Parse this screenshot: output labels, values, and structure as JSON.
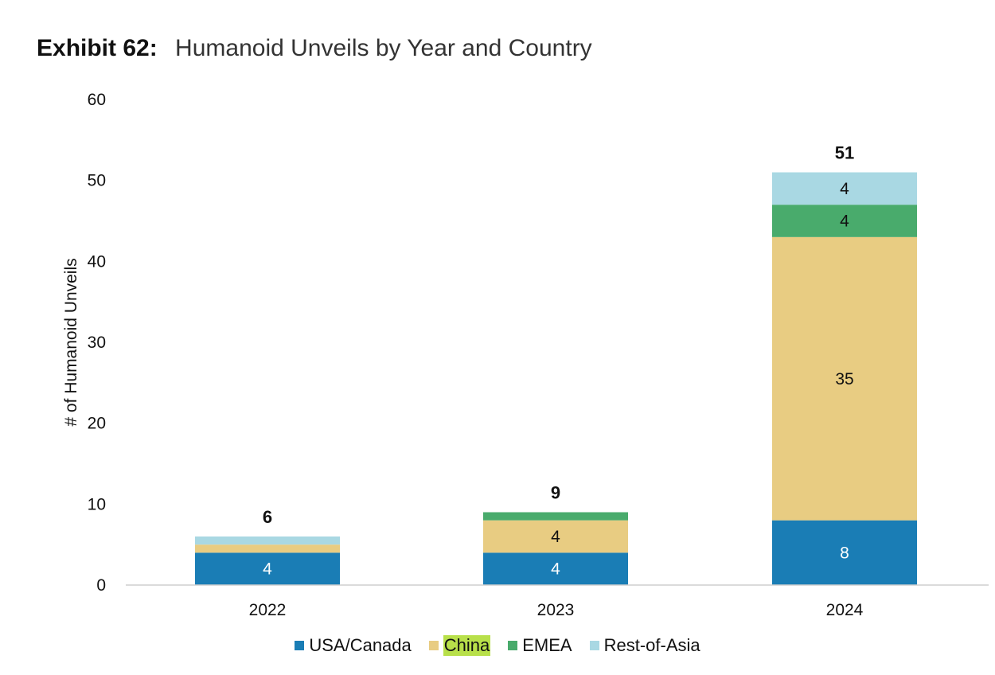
{
  "header": {
    "exhibit_label": "Exhibit 62:",
    "exhibit_title": "Humanoid Unveils by Year and Country"
  },
  "chart_data": {
    "type": "bar",
    "stacked": true,
    "categories": [
      "2022",
      "2023",
      "2024"
    ],
    "series": [
      {
        "name": "USA/Canada",
        "color": "#1a7db5",
        "values": [
          4,
          4,
          8
        ],
        "labels": [
          "4",
          "4",
          "8"
        ],
        "label_color": "#ffffff"
      },
      {
        "name": "China",
        "color": "#e8cc82",
        "values": [
          1,
          4,
          35
        ],
        "labels": [
          "",
          "4",
          "35"
        ],
        "label_color": "#111111"
      },
      {
        "name": "EMEA",
        "color": "#49ab6c",
        "values": [
          0,
          1,
          4
        ],
        "labels": [
          "",
          "",
          "4"
        ],
        "label_color": "#111111"
      },
      {
        "name": "Rest-of-Asia",
        "color": "#a9d8e3",
        "values": [
          1,
          0,
          4
        ],
        "labels": [
          "",
          "",
          "4"
        ],
        "label_color": "#111111"
      }
    ],
    "totals": [
      "6",
      "9",
      "51"
    ],
    "ylabel": "# of Humanoid Unveils",
    "ylim": [
      0,
      60
    ],
    "yticks": [
      "0",
      "10",
      "20",
      "30",
      "40",
      "50",
      "60"
    ],
    "grid": false,
    "legend_position": "bottom",
    "legend_highlight": "China"
  }
}
